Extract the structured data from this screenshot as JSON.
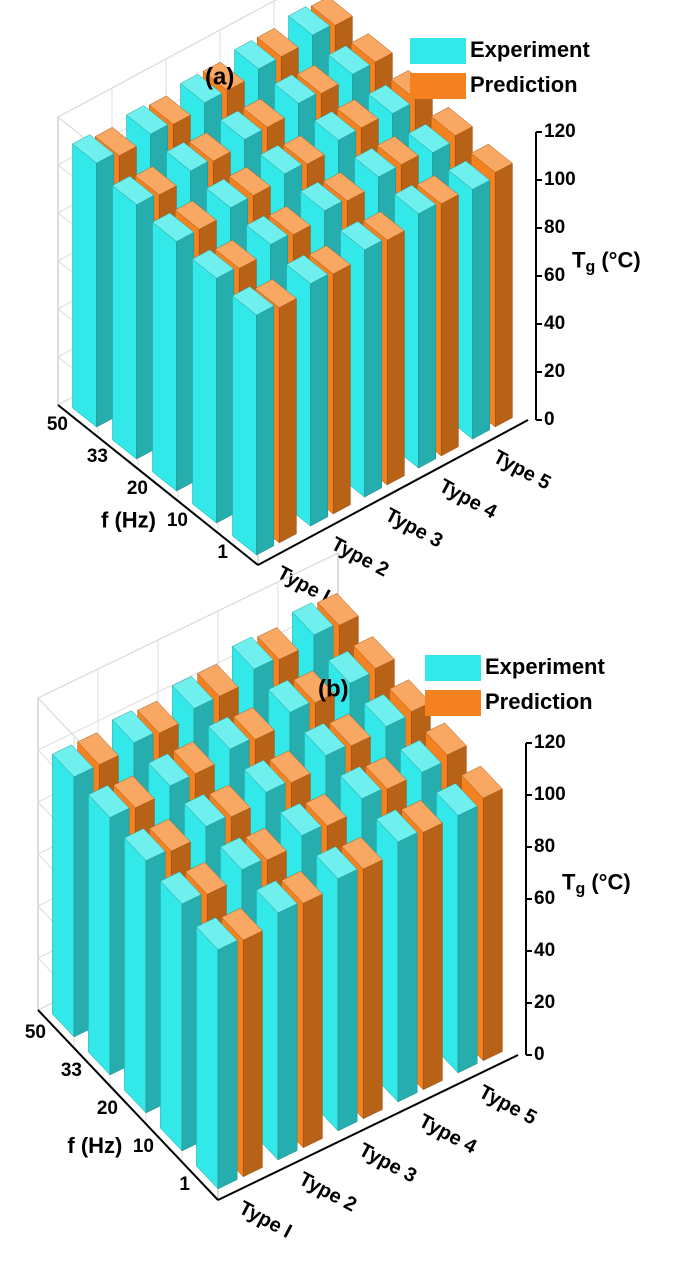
{
  "chart_data": [
    {
      "type": "bar3d",
      "title": "(a)",
      "categories": [
        "Type I",
        "Type 2",
        "Type 3",
        "Type 4",
        "Type 5"
      ],
      "f_categories": [
        "1",
        "10",
        "20",
        "33",
        "50"
      ],
      "f_label": "f (Hz)",
      "y_label": {
        "main": "T",
        "sub": "g",
        "unit": " (°C)"
      },
      "ylim": [
        0,
        120
      ],
      "yticks": [
        0,
        20,
        40,
        60,
        80,
        100,
        120
      ],
      "grid": true,
      "legend": "top-right",
      "series": [
        {
          "name": "Experiment",
          "color": "#33e8e8",
          "values": [
            [
              100,
              102,
              104,
              106,
              110
            ],
            [
              101,
              104,
              106,
              108,
              110
            ],
            [
              103,
              106,
              108,
              109,
              111
            ],
            [
              106,
              108,
              110,
              112,
              113
            ],
            [
              104,
              106,
              109,
              112,
              115
            ]
          ]
        },
        {
          "name": "Prediction",
          "color": "#f58220",
          "values": [
            [
              98,
              101,
              104,
              105,
              108
            ],
            [
              100,
              103,
              106,
              107,
              109
            ],
            [
              102,
              105,
              107,
              109,
              111
            ],
            [
              105,
              108,
              110,
              111,
              113
            ],
            [
              106,
              108,
              110,
              112,
              114
            ]
          ]
        }
      ]
    },
    {
      "type": "bar3d",
      "title": "(b)",
      "categories": [
        "Type I",
        "Type 2",
        "Type 3",
        "Type 4",
        "Type 5"
      ],
      "f_categories": [
        "1",
        "10",
        "20",
        "33",
        "50"
      ],
      "f_label": "f (Hz)",
      "y_label": {
        "main": "T",
        "sub": "g",
        "unit": " (°C)"
      },
      "ylim": [
        0,
        120
      ],
      "yticks": [
        0,
        20,
        40,
        60,
        80,
        100,
        120
      ],
      "grid": true,
      "legend": "top-right",
      "series": [
        {
          "name": "Experiment",
          "color": "#33e8e8",
          "values": [
            [
              92,
              95,
              97,
              99,
              100
            ],
            [
              95,
              97,
              99,
              100,
              102
            ],
            [
              97,
              99,
              101,
              103,
              104
            ],
            [
              100,
              102,
              104,
              106,
              108
            ],
            [
              99,
              101,
              104,
              106,
              110
            ]
          ]
        },
        {
          "name": "Prediction",
          "color": "#f58220",
          "values": [
            [
              91,
              94,
              96,
              98,
              100
            ],
            [
              94,
              96,
              98,
              100,
              101
            ],
            [
              96,
              98,
              100,
              102,
              104
            ],
            [
              99,
              101,
              103,
              105,
              107
            ],
            [
              101,
              103,
              105,
              107,
              109
            ]
          ]
        }
      ]
    }
  ]
}
